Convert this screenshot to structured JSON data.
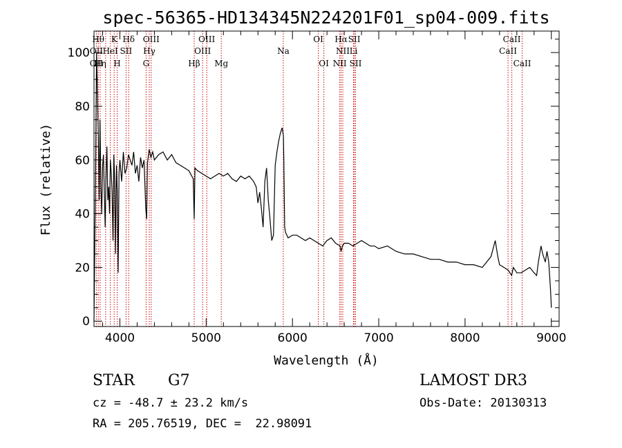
{
  "chart_data": {
    "type": "line",
    "title": "spec-56365-HD134345N224201F01_sp04-009.fits",
    "xlabel": "Wavelength (Å)",
    "ylabel": "Flux (relative)",
    "xlim": [
      3700,
      9090
    ],
    "ylim": [
      -2,
      108
    ],
    "xticks": [
      "4000",
      "5000",
      "6000",
      "7000",
      "8000",
      "9000"
    ],
    "yticks": [
      "0",
      "20",
      "40",
      "60",
      "80",
      "100"
    ],
    "grid": false,
    "series": [
      {
        "x": [
          3700,
          3710,
          3720,
          3730,
          3740,
          3750,
          3760,
          3770,
          3780,
          3790,
          3800,
          3810,
          3820,
          3830,
          3840,
          3850,
          3860,
          3870,
          3880,
          3890,
          3900,
          3910,
          3920,
          3930,
          3940,
          3950,
          3960,
          3970,
          3980,
          3990,
          4000,
          4020,
          4040,
          4060,
          4080,
          4100,
          4120,
          4140,
          4160,
          4180,
          4200,
          4220,
          4240,
          4260,
          4280,
          4300,
          4310,
          4320,
          4340,
          4360,
          4380,
          4400,
          4450,
          4500,
          4550,
          4600,
          4650,
          4700,
          4750,
          4800,
          4850,
          4861,
          4870,
          4900,
          4950,
          5000,
          5050,
          5100,
          5150,
          5200,
          5250,
          5300,
          5350,
          5400,
          5450,
          5500,
          5550,
          5580,
          5600,
          5620,
          5640,
          5660,
          5680,
          5700,
          5720,
          5740,
          5760,
          5780,
          5800,
          5820,
          5840,
          5860,
          5880,
          5895,
          5900,
          5910,
          5920,
          5950,
          6000,
          6050,
          6100,
          6150,
          6200,
          6250,
          6300,
          6350,
          6400,
          6450,
          6500,
          6550,
          6563,
          6580,
          6600,
          6650,
          6700,
          6750,
          6800,
          6850,
          6900,
          6950,
          7000,
          7100,
          7200,
          7300,
          7400,
          7500,
          7600,
          7700,
          7800,
          7900,
          8000,
          8100,
          8200,
          8300,
          8350,
          8380,
          8400,
          8450,
          8500,
          8540,
          8560,
          8600,
          8650,
          8700,
          8750,
          8800,
          8830,
          8850,
          8880,
          8900,
          8930,
          8950,
          8970,
          8990,
          9000
        ],
        "y": [
          0,
          30,
          60,
          100,
          85,
          70,
          45,
          75,
          50,
          40,
          58,
          62,
          48,
          35,
          55,
          65,
          45,
          50,
          40,
          60,
          55,
          48,
          30,
          62,
          52,
          25,
          58,
          48,
          18,
          55,
          60,
          52,
          63,
          55,
          57,
          62,
          60,
          58,
          63,
          55,
          58,
          52,
          61,
          57,
          60,
          42,
          38,
          59,
          64,
          61,
          63,
          60,
          62,
          63,
          60,
          62,
          59,
          58,
          57,
          56,
          53,
          38,
          57,
          56,
          55,
          54,
          53,
          54,
          55,
          54,
          55,
          53,
          52,
          54,
          53,
          54,
          52,
          50,
          44,
          48,
          42,
          35,
          52,
          57,
          45,
          38,
          30,
          32,
          58,
          63,
          67,
          70,
          72,
          69,
          60,
          35,
          33,
          31,
          32,
          32,
          31,
          30,
          31,
          30,
          29,
          28,
          30,
          31,
          29,
          28,
          26,
          28,
          29,
          29,
          28,
          29,
          30,
          29,
          28,
          28,
          27,
          28,
          26,
          25,
          25,
          24,
          23,
          23,
          22,
          22,
          21,
          21,
          20,
          24,
          30,
          24,
          21,
          20,
          19,
          17,
          20,
          18,
          18,
          19,
          20,
          18,
          17,
          22,
          28,
          25,
          22,
          26,
          22,
          12,
          5
        ]
      }
    ],
    "line_markers": [
      {
        "name": "OII",
        "x": 3727
      },
      {
        "name": "Hθ",
        "x": 3750
      },
      {
        "name": "Hη",
        "x": 3771
      },
      {
        "name": "Hζ",
        "x": 3835
      },
      {
        "name": "HeI",
        "x": 3889
      },
      {
        "name": "K",
        "x": 3934
      },
      {
        "name": "H",
        "x": 3968
      },
      {
        "name": "SII",
        "x": 4072
      },
      {
        "name": "Hδ",
        "x": 4102
      },
      {
        "name": "G",
        "x": 4304
      },
      {
        "name": "Hγ",
        "x": 4341
      },
      {
        "name": "OIII",
        "x": 4363
      },
      {
        "name": "Hβ",
        "x": 4861
      },
      {
        "name": "OIII",
        "x": 4959
      },
      {
        "name": "OIII",
        "x": 5007
      },
      {
        "name": "Mg",
        "x": 5175
      },
      {
        "name": "Na",
        "x": 5894
      },
      {
        "name": "OI",
        "x": 6300
      },
      {
        "name": "OI",
        "x": 6364
      },
      {
        "name": "NII",
        "x": 6548
      },
      {
        "name": "Hα",
        "x": 6563
      },
      {
        "name": "NII",
        "x": 6583
      },
      {
        "name": "Li",
        "x": 6708
      },
      {
        "name": "SII",
        "x": 6716
      },
      {
        "name": "SII",
        "x": 6731
      },
      {
        "name": "CaII",
        "x": 8498
      },
      {
        "name": "CaII",
        "x": 8542
      },
      {
        "name": "CaII",
        "x": 8662
      }
    ],
    "line_labels": [
      {
        "text": "Hθ",
        "x": 3750,
        "row": 0
      },
      {
        "text": "K",
        "x": 3934,
        "row": 0
      },
      {
        "text": "Hδ",
        "x": 4102,
        "row": 0
      },
      {
        "text": "OIII",
        "x": 4363,
        "row": 0
      },
      {
        "text": "OIII",
        "x": 5007,
        "row": 0
      },
      {
        "text": "OI",
        "x": 6300,
        "row": 0
      },
      {
        "text": "Hα",
        "x": 6563,
        "row": 0
      },
      {
        "text": "SII",
        "x": 6716,
        "row": 0
      },
      {
        "text": "CaII",
        "x": 8542,
        "row": 0
      },
      {
        "text": "OII",
        "x": 3727,
        "row": 1
      },
      {
        "text": "HeI",
        "x": 3889,
        "row": 1
      },
      {
        "text": "SII",
        "x": 4072,
        "row": 1
      },
      {
        "text": "Hγ",
        "x": 4341,
        "row": 1
      },
      {
        "text": "OIII",
        "x": 4959,
        "row": 1
      },
      {
        "text": "Na",
        "x": 5894,
        "row": 1
      },
      {
        "text": "NII",
        "x": 6583,
        "row": 1
      },
      {
        "text": "Li",
        "x": 6708,
        "row": 1
      },
      {
        "text": "CaII",
        "x": 8498,
        "row": 1
      },
      {
        "text": "OII",
        "x": 3727,
        "row": 2
      },
      {
        "text": "Hη",
        "x": 3771,
        "row": 2
      },
      {
        "text": "H",
        "x": 3968,
        "row": 2
      },
      {
        "text": "G",
        "x": 4304,
        "row": 2
      },
      {
        "text": "Hβ",
        "x": 4861,
        "row": 2
      },
      {
        "text": "Mg",
        "x": 5175,
        "row": 2
      },
      {
        "text": "OI",
        "x": 6364,
        "row": 2
      },
      {
        "text": "NII",
        "x": 6548,
        "row": 2
      },
      {
        "text": "SII",
        "x": 6731,
        "row": 2
      },
      {
        "text": "CaII",
        "x": 8662,
        "row": 2
      }
    ]
  },
  "info": {
    "class_label": "STAR",
    "subclass": "G7",
    "survey": "LAMOST DR3",
    "redshift_line": "cz = -48.7 ± 23.2 km/s",
    "obs_date": "Obs-Date: 20130313",
    "coords": "RA = 205.76519, DEC =  22.98091"
  },
  "colors": {
    "spectrum": "#000000",
    "line_markers": "#cc0000",
    "axes": "#000000",
    "background": "#ffffff"
  }
}
